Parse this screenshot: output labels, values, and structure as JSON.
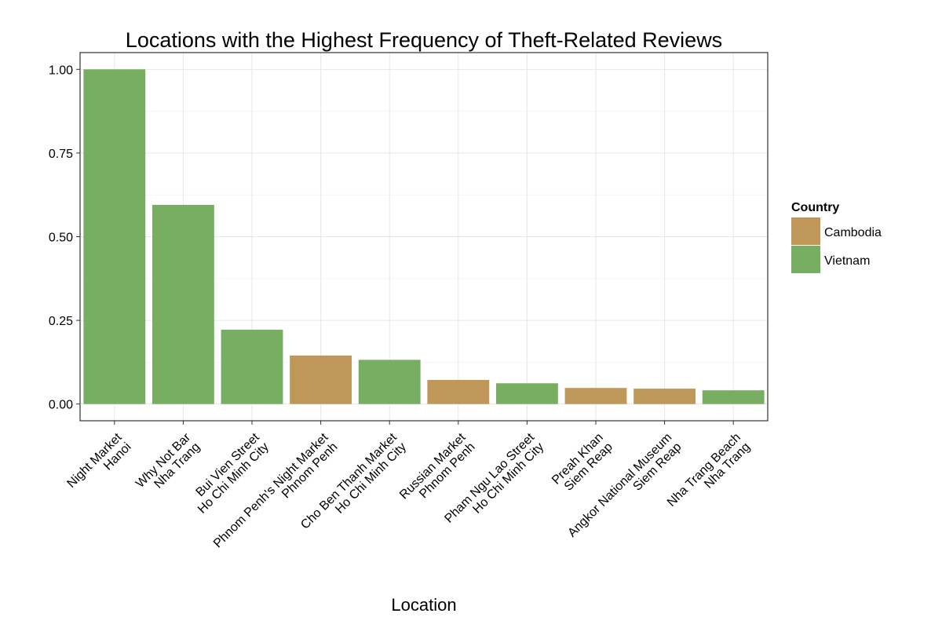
{
  "chart_data": {
    "type": "bar",
    "title": "Locations with the Highest Frequency of Theft-Related Reviews",
    "xlabel": "Location",
    "ylabel": "",
    "ylim": [
      -0.05,
      1.05
    ],
    "yticks": [
      0.0,
      0.25,
      0.5,
      0.75,
      1.0
    ],
    "ytick_labels": [
      "0.00",
      "0.25",
      "0.50",
      "0.75",
      "1.00"
    ],
    "grid": true,
    "legend": {
      "title": "Country",
      "placement": "right",
      "entries": [
        {
          "label": "Cambodia",
          "color": "#BE9759"
        },
        {
          "label": "Vietnam",
          "color": "#78AE62"
        }
      ]
    },
    "categories": [
      [
        "Night Market",
        "Hanoi"
      ],
      [
        "Why Not Bar",
        "Nha Trang"
      ],
      [
        "Bui Vien Street",
        "Ho Chi Minh City"
      ],
      [
        "Phnom Penh's Night Market",
        "Phnom Penh"
      ],
      [
        "Cho Ben Thanh Market",
        "Ho Chi Minh City"
      ],
      [
        "Russian Market",
        "Phnom Penh"
      ],
      [
        "Pham Ngu Lao Street",
        "Ho Chi Minh City"
      ],
      [
        "Preah Khan",
        "Siem Reap"
      ],
      [
        "Angkor National Museum",
        "Siem Reap"
      ],
      [
        "Nha Trang Beach",
        "Nha Trang"
      ]
    ],
    "values": [
      1.0,
      0.595,
      0.222,
      0.145,
      0.132,
      0.072,
      0.062,
      0.048,
      0.046,
      0.041
    ],
    "country": [
      "Vietnam",
      "Vietnam",
      "Vietnam",
      "Cambodia",
      "Vietnam",
      "Cambodia",
      "Vietnam",
      "Cambodia",
      "Cambodia",
      "Vietnam"
    ]
  }
}
